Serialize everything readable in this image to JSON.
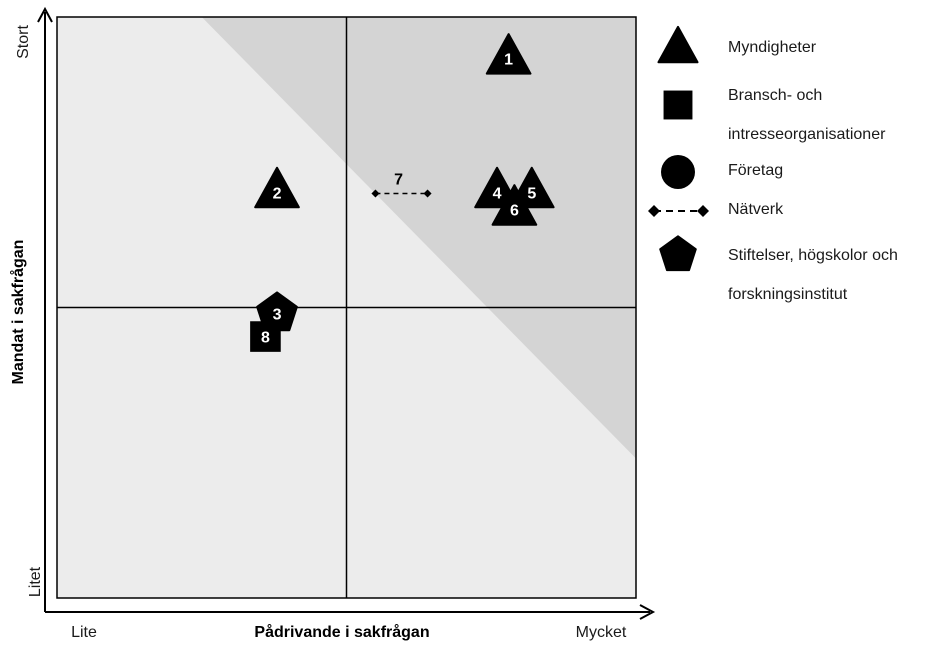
{
  "chart_data": {
    "type": "scatter",
    "title": "",
    "xlabel": "Pådrivande i sakfrågan",
    "ylabel": "Mandat i sakfrågan",
    "x_tick_low": "Lite",
    "x_tick_high": "Mycket",
    "y_tick_low": "Litet",
    "y_tick_high": "Stort",
    "xlim": [
      0,
      10
    ],
    "ylim": [
      0,
      10
    ],
    "quadrant_divider": {
      "x": 5,
      "y": 5
    },
    "shaded_region": "above diagonal from (2.5,10) to (10,2.4)",
    "colors": {
      "background": "#ececec",
      "shade": "#d4d4d4",
      "marker": "#000000",
      "label": "#ffffff"
    },
    "points": [
      {
        "label": "1",
        "category": "Myndigheter",
        "x": 7.8,
        "y": 9.3
      },
      {
        "label": "2",
        "category": "Myndigheter",
        "x": 3.8,
        "y": 7.0
      },
      {
        "label": "4",
        "category": "Myndigheter",
        "x": 7.6,
        "y": 7.0
      },
      {
        "label": "5",
        "category": "Myndigheter",
        "x": 8.2,
        "y": 7.0
      },
      {
        "label": "6",
        "category": "Myndigheter",
        "x": 7.9,
        "y": 6.7
      },
      {
        "label": "3",
        "category": "Stiftelser, högskolor och forskningsinstitut",
        "x": 3.8,
        "y": 4.9
      },
      {
        "label": "8",
        "category": "Bransch- och intresseorganisationer",
        "x": 3.6,
        "y": 4.5
      },
      {
        "label": "7",
        "category": "Nätverk",
        "x": 5.9,
        "y": 7.1,
        "span": [
          5.5,
          6.4
        ]
      }
    ]
  },
  "legend": [
    {
      "shape": "triangle",
      "line1": "Myndigheter",
      "line2": ""
    },
    {
      "shape": "square",
      "line1": "Bransch- och",
      "line2": "intresseorganisationer"
    },
    {
      "shape": "circle",
      "line1": "Företag",
      "line2": ""
    },
    {
      "shape": "dashed-line",
      "line1": "Nätverk",
      "line2": ""
    },
    {
      "shape": "pentagon",
      "line1": "Stiftelser, högskolor och",
      "line2": "forskningsinstitut"
    }
  ]
}
